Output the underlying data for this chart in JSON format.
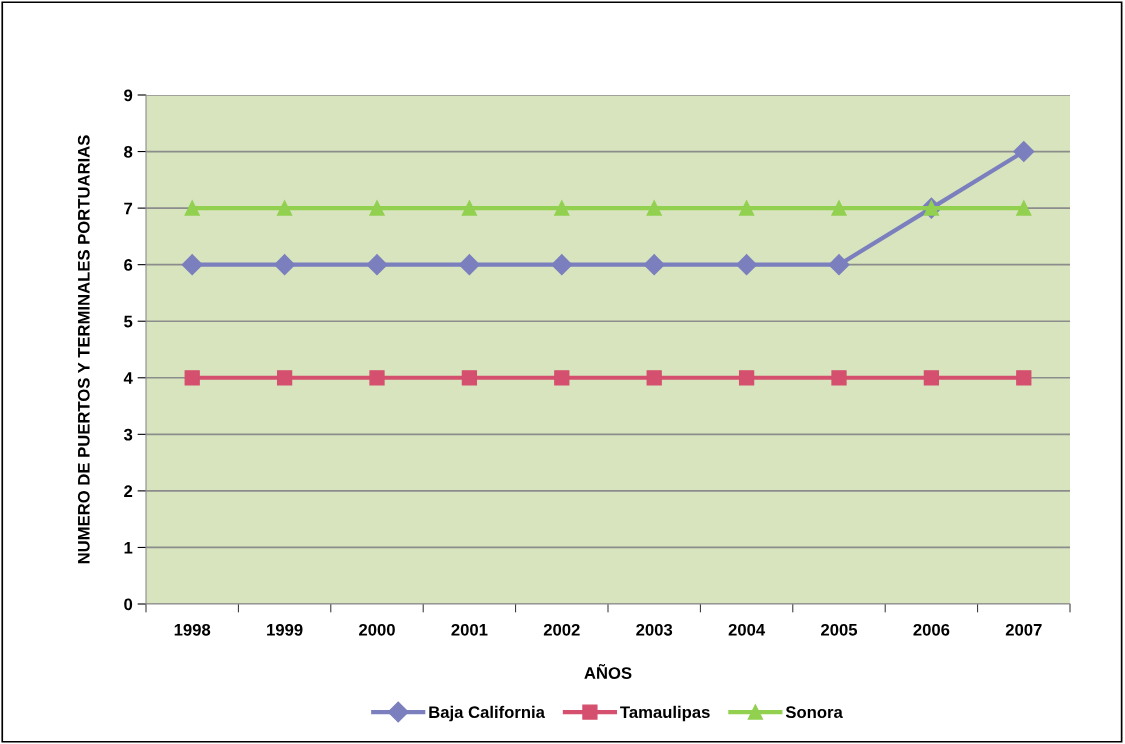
{
  "chart_data": {
    "type": "line",
    "xlabel": "AÑOS",
    "ylabel": "NUMERO DE PUERTOS Y TERMINALES PORTUARIAS",
    "categories": [
      "1998",
      "1999",
      "2000",
      "2001",
      "2002",
      "2003",
      "2004",
      "2005",
      "2006",
      "2007"
    ],
    "series": [
      {
        "name": "Baja California",
        "color": "#7b7fbe",
        "marker": "diamond",
        "values": [
          6,
          6,
          6,
          6,
          6,
          6,
          6,
          6,
          7,
          8
        ]
      },
      {
        "name": "Tamaulipas",
        "color": "#d4506e",
        "marker": "square",
        "values": [
          4,
          4,
          4,
          4,
          4,
          4,
          4,
          4,
          4,
          4
        ]
      },
      {
        "name": "Sonora",
        "color": "#92d050",
        "marker": "triangle",
        "values": [
          7,
          7,
          7,
          7,
          7,
          7,
          7,
          7,
          7,
          7
        ]
      }
    ],
    "ylim": [
      0,
      9
    ],
    "yticks": [
      0,
      1,
      2,
      3,
      4,
      5,
      6,
      7,
      8,
      9
    ],
    "grid": "y",
    "legend": "bottom",
    "line_style": "solid"
  }
}
